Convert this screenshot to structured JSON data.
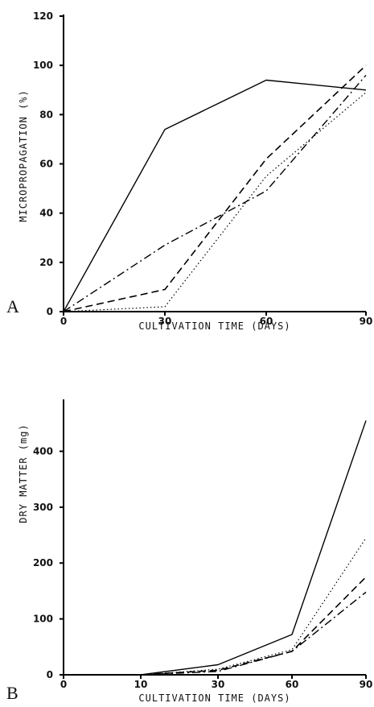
{
  "chart_data": [
    {
      "panel": "A",
      "type": "line",
      "xlabel": "CULTIVATION TIME (DAYS)",
      "ylabel": "MICROPROPAGATION (%)",
      "xlim": [
        0,
        90
      ],
      "ylim": [
        0,
        120
      ],
      "xticks": [
        "0",
        "30",
        "60",
        "90"
      ],
      "yticks": [
        "0",
        "20",
        "40",
        "60",
        "80",
        "100",
        "120"
      ],
      "grid": false,
      "series": [
        {
          "style": "solid",
          "x": [
            0,
            30,
            60,
            90
          ],
          "y": [
            0,
            74,
            94,
            90
          ]
        },
        {
          "style": "dashdot",
          "x": [
            0,
            30,
            60,
            90
          ],
          "y": [
            0,
            27,
            49,
            96
          ]
        },
        {
          "style": "dashed",
          "x": [
            0,
            30,
            60,
            90
          ],
          "y": [
            0,
            9,
            62,
            100
          ]
        },
        {
          "style": "dotted",
          "x": [
            0,
            30,
            60,
            90
          ],
          "y": [
            0,
            2,
            55,
            89
          ]
        }
      ]
    },
    {
      "panel": "B",
      "type": "line",
      "xlabel": "CULTIVATION TIME (DAYS)",
      "ylabel": "DRY MATTER (mg)",
      "xlim": [
        0,
        90
      ],
      "ylim": [
        0,
        490
      ],
      "xticks": [
        "0",
        "10",
        "30",
        "60",
        "90"
      ],
      "yticks": [
        "0",
        "100",
        "200",
        "300",
        "400"
      ],
      "grid": false,
      "series": [
        {
          "style": "solid",
          "x": [
            0,
            10,
            30,
            60,
            90
          ],
          "y": [
            0,
            0,
            18,
            72,
            455
          ]
        },
        {
          "style": "dotted",
          "x": [
            0,
            10,
            30,
            60,
            90
          ],
          "y": [
            0,
            0,
            10,
            45,
            245
          ]
        },
        {
          "style": "dashed",
          "x": [
            0,
            10,
            30,
            60,
            90
          ],
          "y": [
            0,
            0,
            8,
            42,
            175
          ]
        },
        {
          "style": "dashdot",
          "x": [
            0,
            10,
            30,
            60,
            90
          ],
          "y": [
            0,
            0,
            6,
            42,
            148
          ]
        }
      ]
    }
  ],
  "panel_labels": {
    "a": "A",
    "b": "B"
  }
}
